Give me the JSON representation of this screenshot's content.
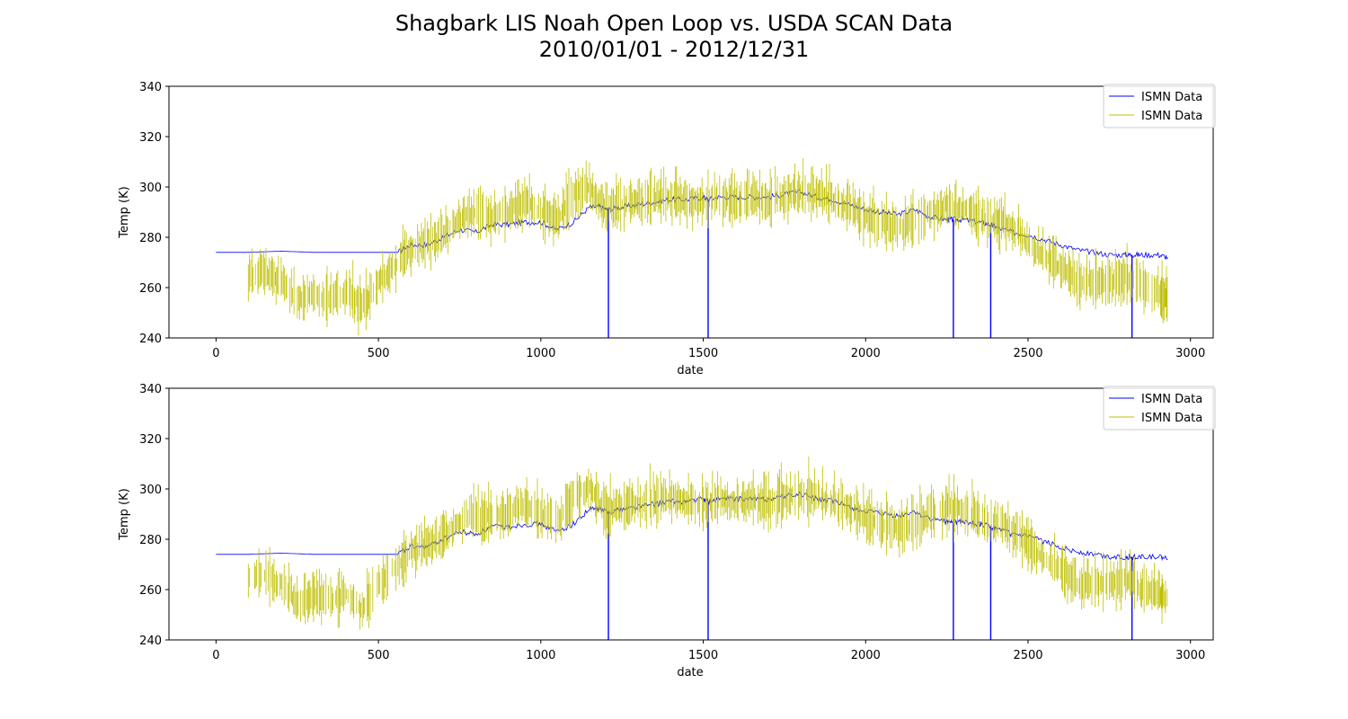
{
  "title": {
    "line1": "Shagbark LIS Noah Open Loop vs. USDA SCAN Data",
    "line2": "2010/01/01 - 2012/12/31"
  },
  "colors": {
    "series1": "#0000ff",
    "series2": "#bfbf00"
  },
  "chart_data": [
    {
      "type": "line",
      "xlabel": "date",
      "ylabel": "Temp (K)",
      "xlim": [
        -145,
        3070
      ],
      "ylim": [
        240,
        340
      ],
      "xticks": [
        0,
        500,
        1000,
        1500,
        2000,
        2500,
        3000
      ],
      "yticks": [
        240,
        260,
        280,
        300,
        320,
        340
      ],
      "legend_placement": "top-right",
      "grid": false,
      "series": [
        {
          "name": "ISMN Data",
          "color": "#0000ff",
          "x": [
            0,
            100,
            200,
            300,
            400,
            500,
            560,
            600,
            650,
            700,
            750,
            800,
            850,
            900,
            950,
            1000,
            1050,
            1100,
            1150,
            1180,
            1205,
            1250,
            1300,
            1350,
            1400,
            1450,
            1500,
            1515,
            1550,
            1600,
            1650,
            1700,
            1750,
            1800,
            1850,
            1900,
            1950,
            2000,
            2050,
            2100,
            2150,
            2200,
            2250,
            2270,
            2300,
            2350,
            2385,
            2400,
            2450,
            2500,
            2550,
            2600,
            2650,
            2700,
            2750,
            2800,
            2820,
            2850,
            2900,
            2930
          ],
          "values": [
            274,
            274,
            274.5,
            274,
            274,
            274,
            274,
            277,
            277,
            280,
            283,
            282,
            285,
            285,
            286,
            286,
            283,
            286,
            292,
            292,
            291,
            292,
            293,
            294,
            295,
            295,
            296,
            295,
            296,
            296,
            296,
            296,
            297,
            298,
            296,
            295,
            293,
            291,
            290,
            289,
            291,
            288,
            287,
            287,
            287,
            286,
            285,
            284,
            282,
            281,
            279,
            277,
            275,
            274,
            273,
            273,
            273,
            273,
            273,
            272
          ],
          "drops": [
            {
              "x": 1208,
              "to": 240
            },
            {
              "x": 1515,
              "to": 240
            },
            {
              "x": 2270,
              "to": 240
            },
            {
              "x": 2385,
              "to": 240
            },
            {
              "x": 2820,
              "to": 240
            }
          ]
        },
        {
          "name": "ISMN Data",
          "color": "#bfbf00",
          "x": [
            100,
            150,
            200,
            250,
            300,
            350,
            400,
            450,
            500,
            550,
            600,
            650,
            700,
            750,
            800,
            850,
            900,
            950,
            1000,
            1050,
            1100,
            1150,
            1200,
            1250,
            1300,
            1350,
            1400,
            1450,
            1500,
            1550,
            1600,
            1650,
            1700,
            1750,
            1800,
            1850,
            1900,
            1950,
            2000,
            2050,
            2100,
            2150,
            2200,
            2250,
            2300,
            2350,
            2400,
            2450,
            2500,
            2550,
            2600,
            2650,
            2700,
            2750,
            2800,
            2850,
            2900,
            2930
          ],
          "values": [
            264,
            266,
            262,
            255,
            257,
            255,
            258,
            252,
            262,
            268,
            275,
            278,
            280,
            287,
            290,
            288,
            290,
            294,
            290,
            286,
            297,
            300,
            291,
            293,
            294,
            295,
            296,
            294,
            293,
            296,
            294,
            295,
            294,
            296,
            298,
            297,
            295,
            292,
            288,
            286,
            284,
            285,
            290,
            292,
            291,
            288,
            286,
            284,
            278,
            272,
            268,
            262,
            262,
            262,
            264,
            260,
            258,
            256
          ]
        }
      ]
    },
    {
      "type": "line",
      "xlabel": "date",
      "ylabel": "Temp (K)",
      "xlim": [
        -145,
        3070
      ],
      "ylim": [
        240,
        340
      ],
      "xticks": [
        0,
        500,
        1000,
        1500,
        2000,
        2500,
        3000
      ],
      "yticks": [
        240,
        260,
        280,
        300,
        320,
        340
      ],
      "legend_placement": "top-right",
      "grid": false,
      "series": [
        {
          "name": "ISMN Data",
          "color": "#0000ff",
          "x": [
            0,
            100,
            200,
            300,
            400,
            500,
            560,
            600,
            650,
            700,
            750,
            800,
            850,
            900,
            950,
            1000,
            1050,
            1100,
            1150,
            1180,
            1205,
            1250,
            1300,
            1350,
            1400,
            1450,
            1500,
            1515,
            1550,
            1600,
            1650,
            1700,
            1750,
            1800,
            1850,
            1900,
            1950,
            2000,
            2050,
            2100,
            2150,
            2200,
            2250,
            2270,
            2300,
            2350,
            2385,
            2400,
            2450,
            2500,
            2550,
            2600,
            2650,
            2700,
            2750,
            2800,
            2820,
            2850,
            2900,
            2930
          ],
          "values": [
            274,
            274,
            274.5,
            274,
            274,
            274,
            274,
            277,
            277,
            280,
            283,
            282,
            285,
            285,
            286,
            286,
            283,
            286,
            292,
            292,
            291,
            292,
            293,
            294,
            295,
            295,
            296,
            295,
            296,
            296,
            296,
            296,
            297,
            298,
            296,
            295,
            293,
            291,
            290,
            289,
            291,
            288,
            287,
            287,
            287,
            286,
            285,
            284,
            282,
            281,
            279,
            277,
            275,
            274,
            273,
            273,
            273,
            273,
            273,
            272
          ],
          "drops": [
            {
              "x": 1208,
              "to": 240
            },
            {
              "x": 1515,
              "to": 240
            },
            {
              "x": 2270,
              "to": 240
            },
            {
              "x": 2385,
              "to": 240
            },
            {
              "x": 2820,
              "to": 240
            }
          ]
        },
        {
          "name": "ISMN Data",
          "color": "#bfbf00",
          "x": [
            100,
            150,
            200,
            250,
            300,
            350,
            400,
            450,
            500,
            550,
            600,
            650,
            700,
            750,
            800,
            850,
            900,
            950,
            1000,
            1050,
            1100,
            1150,
            1200,
            1250,
            1300,
            1350,
            1400,
            1450,
            1500,
            1550,
            1600,
            1650,
            1700,
            1750,
            1800,
            1850,
            1900,
            1950,
            2000,
            2050,
            2100,
            2150,
            2200,
            2250,
            2300,
            2350,
            2400,
            2450,
            2500,
            2550,
            2600,
            2650,
            2700,
            2750,
            2800,
            2850,
            2900,
            2930
          ],
          "values": [
            264,
            266,
            262,
            255,
            257,
            255,
            258,
            252,
            262,
            268,
            275,
            278,
            280,
            287,
            290,
            288,
            290,
            294,
            290,
            286,
            297,
            300,
            291,
            293,
            294,
            295,
            296,
            294,
            293,
            296,
            294,
            295,
            294,
            296,
            298,
            297,
            295,
            292,
            288,
            286,
            284,
            285,
            290,
            292,
            291,
            288,
            286,
            284,
            278,
            272,
            268,
            262,
            262,
            262,
            264,
            260,
            258,
            256
          ]
        }
      ]
    }
  ]
}
